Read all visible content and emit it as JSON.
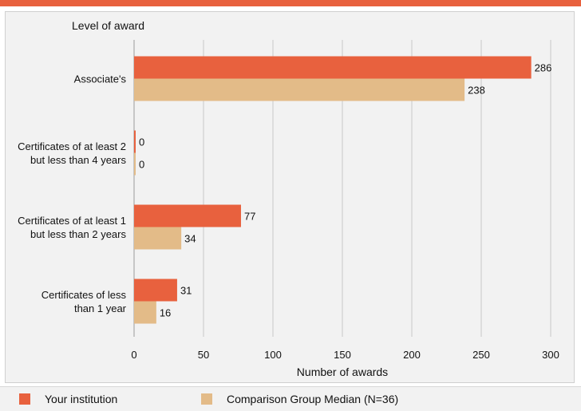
{
  "colors": {
    "top_bar": "#e8613e",
    "series_institution": "#e8613e",
    "series_comparison": "#e3bb88",
    "grid": "#c8c8c8",
    "panel_bg": "#f2f2f2"
  },
  "chart_data": {
    "type": "bar",
    "orientation": "horizontal",
    "title": "",
    "ylabel": "Level of award",
    "xlabel": "Number of awards",
    "xlim": [
      0,
      300
    ],
    "xticks": [
      0,
      50,
      100,
      150,
      200,
      250,
      300
    ],
    "xtick_labels": [
      "0",
      "50",
      "100",
      "150",
      "200",
      "250",
      "300"
    ],
    "grid": "vertical",
    "legend_position": "bottom",
    "categories": [
      [
        "Associate's"
      ],
      [
        "Certificates of at least 2",
        "but less than 4 years"
      ],
      [
        "Certificates of at least 1",
        "but  less than 2 years"
      ],
      [
        "Certificates of less",
        "than 1 year"
      ]
    ],
    "series": [
      {
        "name": "Your institution",
        "values": [
          286,
          0,
          77,
          31
        ],
        "labels": [
          "286",
          "0",
          "77",
          "31"
        ]
      },
      {
        "name": "Comparison Group Median (N=36)",
        "values": [
          238,
          0,
          34,
          16
        ],
        "labels": [
          "238",
          "0",
          "34",
          "16"
        ]
      }
    ]
  }
}
